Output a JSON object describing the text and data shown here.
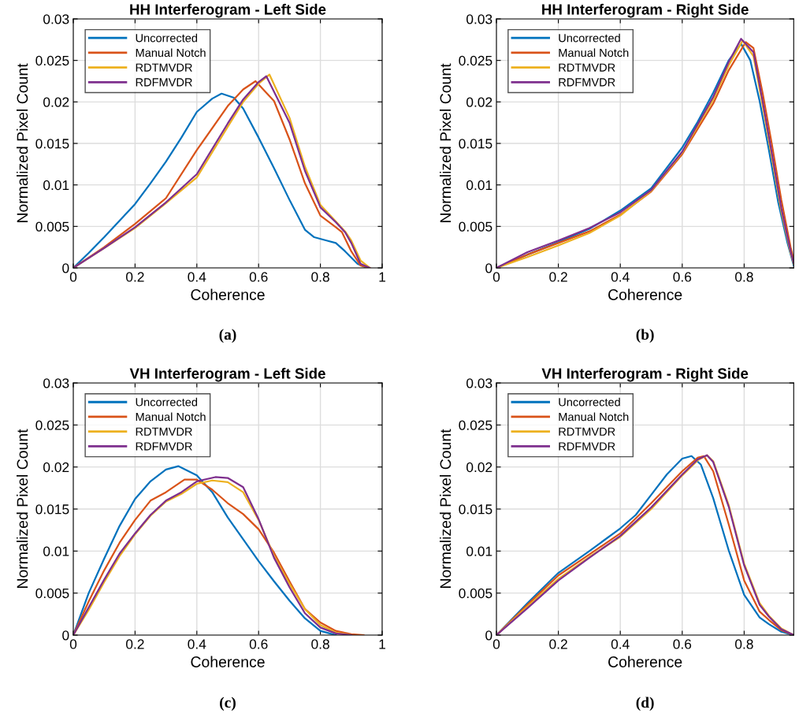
{
  "chart_data": [
    {
      "type": "line",
      "title": "HH Interferogram - Left Side",
      "xlabel": "Coherence",
      "ylabel": "Normalized Pixel Count",
      "annotations": [
        "(a)"
      ],
      "xlim": [
        0,
        1
      ],
      "ylim": [
        0,
        0.03
      ],
      "xticks": [
        0,
        0.2,
        0.4,
        0.6,
        0.8,
        1
      ],
      "yticks": [
        0,
        0.005,
        0.01,
        0.015,
        0.02,
        0.025,
        0.03
      ],
      "grid": true,
      "legend": "top left",
      "line_style": "solid",
      "series": [
        {
          "name": "Uncorrected",
          "color": "#0072bd",
          "x": [
            0,
            0.05,
            0.1,
            0.15,
            0.2,
            0.25,
            0.3,
            0.35,
            0.4,
            0.45,
            0.48,
            0.52,
            0.55,
            0.6,
            0.65,
            0.7,
            0.75,
            0.78,
            0.82,
            0.85,
            0.88,
            0.92,
            0.95
          ],
          "values": [
            0,
            0.0018,
            0.0037,
            0.0057,
            0.0077,
            0.0102,
            0.0128,
            0.0157,
            0.0188,
            0.0204,
            0.021,
            0.0205,
            0.0192,
            0.0157,
            0.012,
            0.0082,
            0.0046,
            0.0037,
            0.0033,
            0.003,
            0.002,
            0.0005,
            0
          ]
        },
        {
          "name": "Manual Notch",
          "color": "#d95319",
          "x": [
            0,
            0.1,
            0.2,
            0.3,
            0.4,
            0.5,
            0.55,
            0.59,
            0.65,
            0.7,
            0.75,
            0.8,
            0.85,
            0.87,
            0.9,
            0.93,
            0.96
          ],
          "values": [
            0,
            0.0025,
            0.0053,
            0.0084,
            0.0142,
            0.0195,
            0.0215,
            0.0225,
            0.0201,
            0.0155,
            0.0102,
            0.0063,
            0.0049,
            0.0043,
            0.002,
            0.0003,
            0
          ]
        },
        {
          "name": "RDTMVDR",
          "color": "#edb120",
          "x": [
            0,
            0.1,
            0.2,
            0.3,
            0.4,
            0.5,
            0.55,
            0.6,
            0.635,
            0.7,
            0.75,
            0.8,
            0.85,
            0.88,
            0.9,
            0.93,
            0.96
          ],
          "values": [
            0,
            0.0024,
            0.0048,
            0.0078,
            0.0109,
            0.017,
            0.02,
            0.0222,
            0.0233,
            0.0181,
            0.0122,
            0.0076,
            0.0056,
            0.0044,
            0.0033,
            0.0009,
            0
          ]
        },
        {
          "name": "RDFMVDR",
          "color": "#7e2f8e",
          "x": [
            0,
            0.1,
            0.2,
            0.3,
            0.4,
            0.5,
            0.55,
            0.6,
            0.625,
            0.7,
            0.75,
            0.8,
            0.85,
            0.88,
            0.9,
            0.93,
            0.96
          ],
          "values": [
            0,
            0.0024,
            0.0049,
            0.0079,
            0.0113,
            0.0174,
            0.0203,
            0.0224,
            0.0231,
            0.0175,
            0.0117,
            0.0073,
            0.0055,
            0.0043,
            0.003,
            0.0005,
            0
          ]
        }
      ]
    },
    {
      "type": "line",
      "title": "HH Interferogram - Right Side",
      "xlabel": "Coherence",
      "ylabel": "Normalized Pixel Count",
      "annotations": [
        "(b)"
      ],
      "xlim": [
        0,
        0.96
      ],
      "ylim": [
        0,
        0.03
      ],
      "xticks": [
        0,
        0.2,
        0.4,
        0.6,
        0.8
      ],
      "yticks": [
        0,
        0.005,
        0.01,
        0.015,
        0.02,
        0.025,
        0.03
      ],
      "grid": true,
      "legend": "top left",
      "line_style": "solid",
      "series": [
        {
          "name": "Uncorrected",
          "color": "#0072bd",
          "x": [
            0,
            0.1,
            0.2,
            0.3,
            0.4,
            0.5,
            0.6,
            0.65,
            0.7,
            0.75,
            0.79,
            0.82,
            0.85,
            0.88,
            0.91,
            0.94,
            0.96
          ],
          "values": [
            0,
            0.0016,
            0.0031,
            0.0047,
            0.0069,
            0.0096,
            0.0145,
            0.0176,
            0.0211,
            0.025,
            0.027,
            0.025,
            0.0201,
            0.0142,
            0.0079,
            0.003,
            0.0003
          ]
        },
        {
          "name": "Manual Notch",
          "color": "#d95319",
          "x": [
            0,
            0.1,
            0.2,
            0.3,
            0.4,
            0.5,
            0.6,
            0.7,
            0.75,
            0.805,
            0.83,
            0.86,
            0.89,
            0.92,
            0.95,
            0.96
          ],
          "values": [
            0,
            0.0016,
            0.003,
            0.0044,
            0.0064,
            0.0092,
            0.0137,
            0.0198,
            0.0238,
            0.0272,
            0.0265,
            0.021,
            0.0148,
            0.0082,
            0.0025,
            0.001
          ]
        },
        {
          "name": "RDTMVDR",
          "color": "#edb120",
          "x": [
            0,
            0.1,
            0.2,
            0.3,
            0.4,
            0.5,
            0.6,
            0.7,
            0.75,
            0.795,
            0.83,
            0.86,
            0.89,
            0.92,
            0.95,
            0.96
          ],
          "values": [
            0,
            0.0013,
            0.0027,
            0.0042,
            0.0063,
            0.0093,
            0.0139,
            0.0203,
            0.0244,
            0.0274,
            0.0255,
            0.0195,
            0.0132,
            0.0068,
            0.0018,
            0.0005
          ]
        },
        {
          "name": "RDFMVDR",
          "color": "#7e2f8e",
          "x": [
            0,
            0.1,
            0.2,
            0.3,
            0.4,
            0.5,
            0.6,
            0.7,
            0.75,
            0.79,
            0.83,
            0.86,
            0.89,
            0.92,
            0.95,
            0.96
          ],
          "values": [
            0,
            0.0019,
            0.0033,
            0.0048,
            0.0067,
            0.0094,
            0.014,
            0.0206,
            0.0248,
            0.0276,
            0.026,
            0.02,
            0.0137,
            0.0072,
            0.002,
            0.0006
          ]
        }
      ]
    },
    {
      "type": "line",
      "title": "VH Interferogram - Left Side",
      "xlabel": "Coherence",
      "ylabel": "Normalized Pixel Count",
      "annotations": [
        "(c)"
      ],
      "xlim": [
        0,
        1
      ],
      "ylim": [
        0,
        0.03
      ],
      "xticks": [
        0,
        0.2,
        0.4,
        0.6,
        0.8,
        1
      ],
      "yticks": [
        0,
        0.005,
        0.01,
        0.015,
        0.02,
        0.025,
        0.03
      ],
      "grid": true,
      "legend": "top left",
      "line_style": "solid",
      "series": [
        {
          "name": "Uncorrected",
          "color": "#0072bd",
          "x": [
            0,
            0.05,
            0.1,
            0.15,
            0.2,
            0.25,
            0.3,
            0.34,
            0.4,
            0.45,
            0.5,
            0.55,
            0.6,
            0.65,
            0.7,
            0.75,
            0.8,
            0.85
          ],
          "values": [
            0,
            0.005,
            0.0091,
            0.013,
            0.0162,
            0.0183,
            0.0197,
            0.0201,
            0.019,
            0.017,
            0.014,
            0.0114,
            0.0088,
            0.0064,
            0.0041,
            0.002,
            0.0005,
            0
          ]
        },
        {
          "name": "Manual Notch",
          "color": "#d95319",
          "x": [
            0,
            0.05,
            0.1,
            0.15,
            0.2,
            0.25,
            0.3,
            0.36,
            0.4,
            0.45,
            0.5,
            0.55,
            0.6,
            0.65,
            0.7,
            0.75,
            0.8,
            0.85,
            0.9,
            0.94
          ],
          "values": [
            0,
            0.004,
            0.0077,
            0.011,
            0.0137,
            0.016,
            0.017,
            0.0185,
            0.0185,
            0.0173,
            0.0157,
            0.0144,
            0.0126,
            0.0098,
            0.0064,
            0.0031,
            0.0015,
            0.0005,
            0.0001,
            0
          ]
        },
        {
          "name": "RDTMVDR",
          "color": "#edb120",
          "x": [
            0,
            0.05,
            0.1,
            0.15,
            0.2,
            0.25,
            0.3,
            0.35,
            0.4,
            0.45,
            0.5,
            0.55,
            0.6,
            0.65,
            0.7,
            0.75,
            0.8,
            0.85,
            0.9
          ],
          "values": [
            0,
            0.003,
            0.0063,
            0.0094,
            0.012,
            0.0142,
            0.0159,
            0.0168,
            0.018,
            0.0184,
            0.0182,
            0.017,
            0.0137,
            0.0094,
            0.0061,
            0.0031,
            0.0012,
            0.0003,
            0
          ]
        },
        {
          "name": "RDFMVDR",
          "color": "#7e2f8e",
          "x": [
            0,
            0.05,
            0.1,
            0.15,
            0.2,
            0.25,
            0.3,
            0.35,
            0.4,
            0.46,
            0.5,
            0.55,
            0.6,
            0.65,
            0.7,
            0.75,
            0.8,
            0.85,
            0.9
          ],
          "values": [
            0,
            0.0033,
            0.0066,
            0.0097,
            0.0121,
            0.0143,
            0.016,
            0.017,
            0.0183,
            0.0188,
            0.0187,
            0.0176,
            0.0138,
            0.0092,
            0.0057,
            0.0026,
            0.0009,
            0.0002,
            0
          ]
        }
      ]
    },
    {
      "type": "line",
      "title": "VH Interferogram - Right Side",
      "xlabel": "Coherence",
      "ylabel": "Normalized Pixel Count",
      "annotations": [
        "(d)"
      ],
      "xlim": [
        0,
        0.96
      ],
      "ylim": [
        0,
        0.03
      ],
      "xticks": [
        0,
        0.2,
        0.4,
        0.6,
        0.8
      ],
      "yticks": [
        0,
        0.005,
        0.01,
        0.015,
        0.02,
        0.025,
        0.03
      ],
      "grid": true,
      "legend": "top left",
      "line_style": "solid",
      "series": [
        {
          "name": "Uncorrected",
          "color": "#0072bd",
          "x": [
            0,
            0.1,
            0.2,
            0.3,
            0.4,
            0.45,
            0.5,
            0.55,
            0.6,
            0.63,
            0.66,
            0.7,
            0.75,
            0.8,
            0.85,
            0.88,
            0.92,
            0.96
          ],
          "values": [
            0,
            0.0038,
            0.0074,
            0.01,
            0.0127,
            0.0143,
            0.0167,
            0.0191,
            0.021,
            0.0213,
            0.0203,
            0.0163,
            0.0101,
            0.0048,
            0.0021,
            0.0013,
            0.0004,
            0
          ]
        },
        {
          "name": "Manual Notch",
          "color": "#d95319",
          "x": [
            0,
            0.1,
            0.2,
            0.3,
            0.4,
            0.5,
            0.6,
            0.65,
            0.67,
            0.7,
            0.75,
            0.8,
            0.85,
            0.88,
            0.92,
            0.96
          ],
          "values": [
            0,
            0.0036,
            0.0071,
            0.0096,
            0.0121,
            0.0157,
            0.0195,
            0.0211,
            0.0213,
            0.0195,
            0.0132,
            0.0065,
            0.0028,
            0.0018,
            0.0006,
            0
          ]
        },
        {
          "name": "RDTMVDR",
          "color": "#edb120",
          "x": [
            0,
            0.1,
            0.2,
            0.3,
            0.4,
            0.5,
            0.6,
            0.65,
            0.68,
            0.7,
            0.75,
            0.8,
            0.85,
            0.88,
            0.92,
            0.96
          ],
          "values": [
            0,
            0.0034,
            0.0067,
            0.0093,
            0.0117,
            0.015,
            0.019,
            0.0208,
            0.0214,
            0.0207,
            0.0155,
            0.0085,
            0.0038,
            0.0023,
            0.0008,
            0
          ]
        },
        {
          "name": "RDFMVDR",
          "color": "#7e2f8e",
          "x": [
            0,
            0.1,
            0.2,
            0.3,
            0.4,
            0.5,
            0.6,
            0.65,
            0.68,
            0.7,
            0.75,
            0.8,
            0.85,
            0.88,
            0.92,
            0.96
          ],
          "values": [
            0,
            0.0032,
            0.0065,
            0.0092,
            0.0118,
            0.0152,
            0.0191,
            0.0209,
            0.0214,
            0.0206,
            0.0153,
            0.0083,
            0.0036,
            0.0022,
            0.0007,
            0
          ]
        }
      ]
    }
  ]
}
